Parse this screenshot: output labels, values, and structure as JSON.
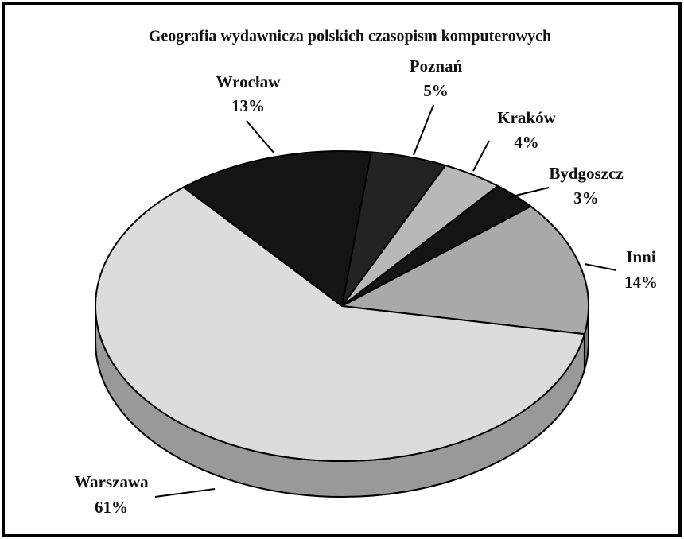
{
  "chart_data": {
    "type": "pie",
    "title": "Geografia wydawnicza polskich czasopism komputerowych",
    "categories": [
      "Wrocław",
      "Poznań",
      "Kraków",
      "Bydgoszcz",
      "Inni",
      "Warszawa"
    ],
    "values": [
      13,
      5,
      4,
      3,
      14,
      61
    ],
    "value_labels": [
      "13%",
      "5%",
      "4%",
      "3%",
      "14%",
      "61%"
    ],
    "colors": [
      "#141414",
      "#232323",
      "#b8b8b8",
      "#141414",
      "#a9a9a9",
      "#dcdcdc"
    ]
  }
}
